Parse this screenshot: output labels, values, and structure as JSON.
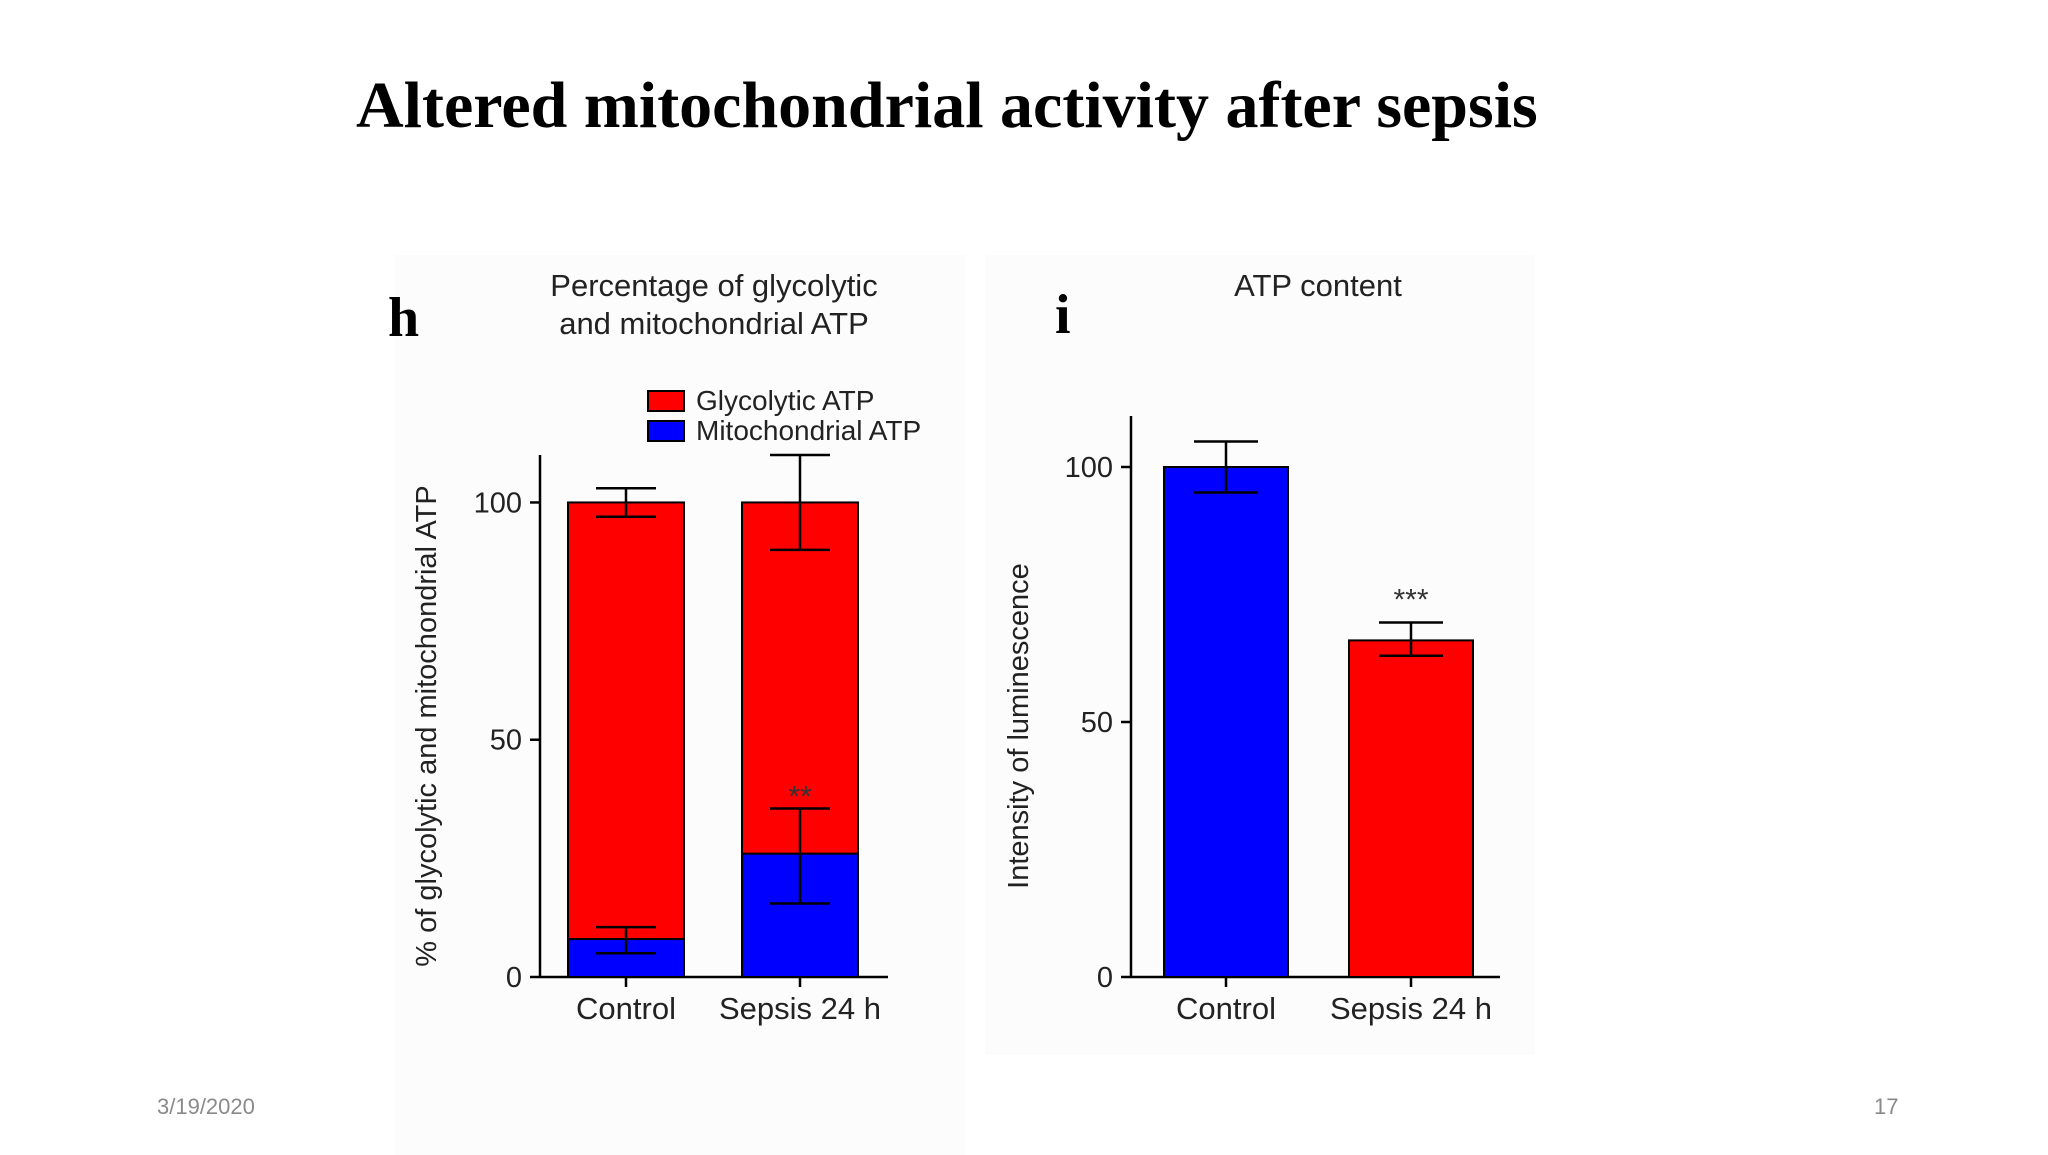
{
  "slide": {
    "title": "Altered mitochondrial activity after sepsis",
    "date": "3/19/2020",
    "page_number": "17"
  },
  "colors": {
    "red": "#ff0000",
    "blue": "#0000ff",
    "axis": "#000000"
  },
  "chart_data": [
    {
      "panel_label": "h",
      "type": "bar",
      "stacked": true,
      "title_lines": [
        "Percentage of glycolytic",
        "and mitochondrial ATP"
      ],
      "ylabel": "% of glycolytic and mitochondrial ATP",
      "xlabel": "",
      "ylim": [
        0,
        110
      ],
      "yticks": [
        0,
        50,
        100
      ],
      "categories": [
        "Control",
        "Sepsis 24 h"
      ],
      "series": [
        {
          "name": "Mitochondrial ATP",
          "color": "#0000ff",
          "values": [
            8,
            26
          ],
          "error_high": [
            10.5,
            35.5
          ],
          "error_low": [
            5,
            15.5
          ]
        },
        {
          "name": "Glycolytic ATP",
          "color": "#ff0000",
          "values": [
            92,
            74
          ],
          "error_high": [
            103,
            110
          ],
          "error_low": [
            97,
            90
          ]
        }
      ],
      "annotations": [
        {
          "category": "Sepsis 24 h",
          "text": "**",
          "y": 38
        }
      ],
      "legend": "top-right"
    },
    {
      "panel_label": "i",
      "type": "bar",
      "title": "ATP content",
      "ylabel": "Intensity of luminescence",
      "xlabel": "",
      "ylim": [
        0,
        110
      ],
      "yticks": [
        0,
        50,
        100
      ],
      "categories": [
        "Control",
        "Sepsis 24 h"
      ],
      "values": [
        100,
        66
      ],
      "colors": [
        "#0000ff",
        "#ff0000"
      ],
      "error_high": [
        105,
        69.5
      ],
      "error_low": [
        95,
        63
      ],
      "annotations": [
        {
          "category": "Sepsis 24 h",
          "text": "***",
          "y": 74
        }
      ]
    }
  ]
}
